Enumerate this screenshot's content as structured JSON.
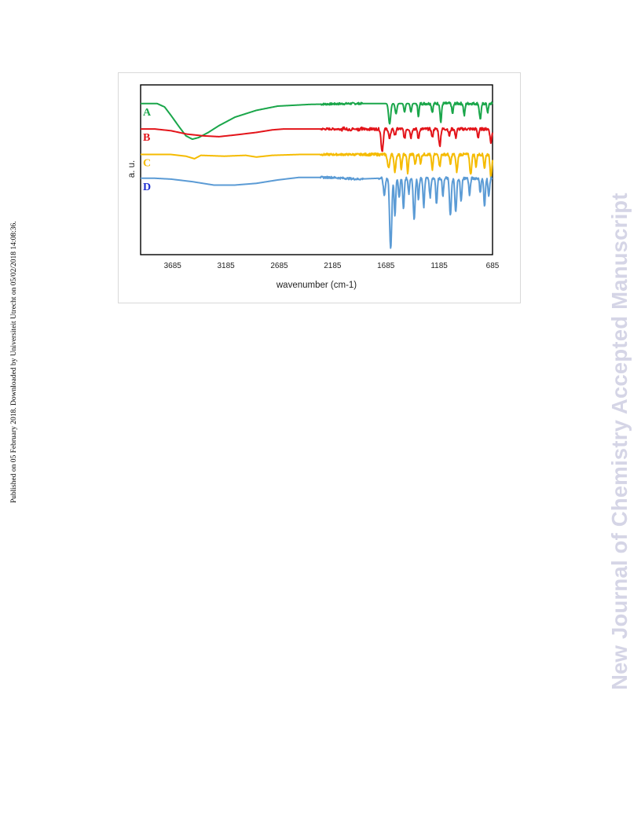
{
  "side_note": "Published on 05 February 2018. Downloaded by Universiteit Utrecht on 05/02/2018 14:08:36.",
  "watermark": "New Journal of Chemistry Accepted Manuscript",
  "chart_data": {
    "type": "line",
    "xlabel": "wavenumber (cm-1)",
    "ylabel": "a. u.",
    "x_ticks": [
      "3685",
      "3185",
      "2685",
      "2185",
      "1685",
      "1185",
      "685"
    ],
    "xlim": [
      3985,
      685
    ],
    "x_reversed": true,
    "ylim": [
      0,
      100
    ],
    "grid": false,
    "legend": "none",
    "series": [
      {
        "name": "A",
        "color": "#1aa64a",
        "baseline": 89,
        "band_start": 1400,
        "points": [
          [
            3985,
            89
          ],
          [
            3830,
            89
          ],
          [
            3760,
            87
          ],
          [
            3700,
            82
          ],
          [
            3620,
            75
          ],
          [
            3560,
            70
          ],
          [
            3500,
            68
          ],
          [
            3440,
            69
          ],
          [
            3350,
            72
          ],
          [
            3250,
            76
          ],
          [
            3100,
            81
          ],
          [
            2900,
            85
          ],
          [
            2700,
            87.5
          ],
          [
            2400,
            88.5
          ],
          [
            2000,
            89
          ],
          [
            1800,
            89
          ]
        ],
        "dips": [
          [
            1650,
            12,
            14
          ],
          [
            1590,
            6,
            12
          ],
          [
            1510,
            5,
            10
          ],
          [
            1450,
            5,
            10
          ],
          [
            1380,
            7,
            10
          ],
          [
            1250,
            5,
            10
          ],
          [
            1170,
            11,
            10
          ],
          [
            1060,
            6,
            10
          ],
          [
            950,
            7,
            10
          ],
          [
            800,
            9,
            12
          ],
          [
            730,
            5,
            10
          ]
        ]
      },
      {
        "name": "B",
        "color": "#e3141a",
        "baseline": 74,
        "band_start": 2100,
        "points": [
          [
            3985,
            74
          ],
          [
            3850,
            74
          ],
          [
            3700,
            73
          ],
          [
            3550,
            71
          ],
          [
            3400,
            70
          ],
          [
            3250,
            69.5
          ],
          [
            3100,
            70.5
          ],
          [
            2900,
            72
          ],
          [
            2750,
            73.5
          ],
          [
            2650,
            74
          ],
          [
            2400,
            74
          ],
          [
            2100,
            74
          ]
        ],
        "dips": [
          [
            1720,
            13,
            14
          ],
          [
            1650,
            6,
            12
          ],
          [
            1600,
            4,
            10
          ],
          [
            1510,
            6,
            10
          ],
          [
            1450,
            5,
            10
          ],
          [
            1380,
            6,
            10
          ],
          [
            1250,
            5,
            10
          ],
          [
            1180,
            10,
            12
          ],
          [
            1090,
            4,
            10
          ],
          [
            1030,
            5,
            10
          ],
          [
            820,
            5,
            10
          ],
          [
            700,
            8,
            12
          ]
        ]
      },
      {
        "name": "C",
        "color": "#f5bb00",
        "baseline": 59,
        "band_start": 1900,
        "points": [
          [
            3985,
            59
          ],
          [
            3700,
            59
          ],
          [
            3560,
            58
          ],
          [
            3480,
            56.5
          ],
          [
            3420,
            58.5
          ],
          [
            3200,
            58
          ],
          [
            3000,
            58.5
          ],
          [
            2900,
            57.5
          ],
          [
            2750,
            58.5
          ],
          [
            2500,
            59
          ],
          [
            2200,
            59
          ],
          [
            1900,
            59
          ]
        ],
        "dips": [
          [
            1660,
            8,
            14
          ],
          [
            1600,
            10,
            12
          ],
          [
            1540,
            9,
            10
          ],
          [
            1480,
            11,
            10
          ],
          [
            1410,
            6,
            10
          ],
          [
            1360,
            5,
            10
          ],
          [
            1250,
            9,
            10
          ],
          [
            1180,
            7,
            10
          ],
          [
            1080,
            6,
            10
          ],
          [
            1020,
            10,
            12
          ],
          [
            890,
            12,
            12
          ],
          [
            840,
            7,
            10
          ],
          [
            760,
            8,
            10
          ],
          [
            700,
            13,
            12
          ]
        ]
      },
      {
        "name": "D",
        "color": "#5b9bd5",
        "baseline": 45,
        "band_start": 1750,
        "points": [
          [
            3985,
            45
          ],
          [
            3850,
            45
          ],
          [
            3700,
            44.5
          ],
          [
            3500,
            43
          ],
          [
            3300,
            41
          ],
          [
            3100,
            41
          ],
          [
            2900,
            42
          ],
          [
            2700,
            44
          ],
          [
            2500,
            45.5
          ],
          [
            2200,
            45.5
          ],
          [
            1950,
            44.5
          ],
          [
            1750,
            45
          ]
        ],
        "dips": [
          [
            1700,
            10,
            12
          ],
          [
            1640,
            42,
            14
          ],
          [
            1600,
            22,
            10
          ],
          [
            1560,
            12,
            10
          ],
          [
            1520,
            18,
            10
          ],
          [
            1470,
            9,
            10
          ],
          [
            1420,
            24,
            12
          ],
          [
            1380,
            12,
            10
          ],
          [
            1330,
            17,
            10
          ],
          [
            1270,
            11,
            10
          ],
          [
            1210,
            15,
            10
          ],
          [
            1150,
            10,
            10
          ],
          [
            1080,
            22,
            12
          ],
          [
            1030,
            20,
            12
          ],
          [
            980,
            14,
            10
          ],
          [
            900,
            10,
            10
          ],
          [
            800,
            8,
            10
          ],
          [
            760,
            17,
            10
          ],
          [
            720,
            11,
            10
          ]
        ]
      }
    ]
  }
}
